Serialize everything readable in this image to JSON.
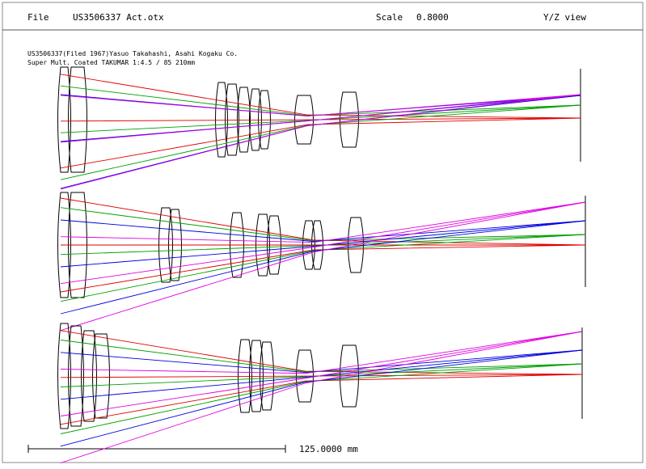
{
  "header": {
    "menu": "File",
    "filename": "US3506337 Act.otx",
    "scale_label": "Scale",
    "scale_value": "0.8000",
    "view": "Y/Z view"
  },
  "description": [
    "US3506337(Filed 1967)Yasuo Takahashi, Asahi Kogaku Co.",
    "Super Mult. Coated TAKUMAR 1:4.5 / 85 210mm"
  ],
  "scale_bar": {
    "label": "125.0000 mm"
  }
}
